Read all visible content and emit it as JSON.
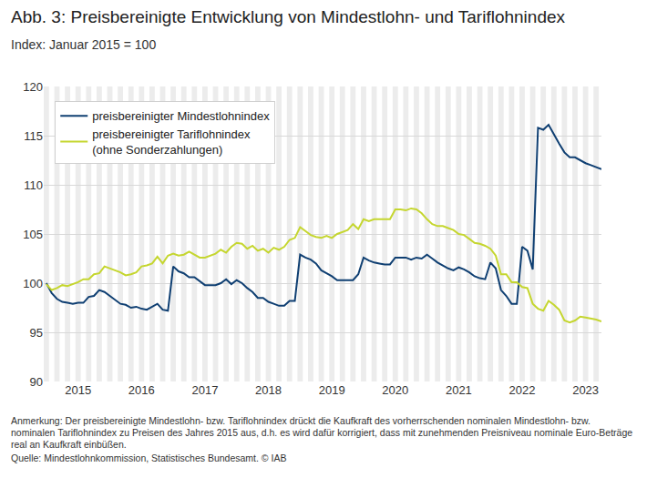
{
  "chart_data": {
    "type": "line",
    "title": "Abb. 3: Preisbereinigte Entwicklung von Mindestlohn- und Tariflohnindex",
    "subtitle": "Index: Januar 2015 = 100",
    "note": "Anmerkung: Der preisbereinigte Mindestlohn- bzw. Tariflohnindex drückt die Kaufkraft des vorherrschenden nominalen Mindestlohn- bzw. nominalen Tariflohnindex zu Preisen des Jahres 2015 aus, d.h. es wird dafür korrigiert, dass mit zunehmenden Preisniveau nominale Euro-Beträge real an Kaufkraft einbüßen.",
    "source": "Quelle: Mindestlohnkommission, Statistisches Bundesamt. © IAB",
    "categories": [
      null,
      null,
      null,
      null,
      null,
      null,
      "2015",
      null,
      null,
      null,
      null,
      null,
      null,
      null,
      null,
      null,
      null,
      null,
      "2016",
      null,
      null,
      null,
      null,
      null,
      null,
      null,
      null,
      null,
      null,
      null,
      "2017",
      null,
      null,
      null,
      null,
      null,
      null,
      null,
      null,
      null,
      null,
      null,
      "2018",
      null,
      null,
      null,
      null,
      null,
      null,
      null,
      null,
      null,
      null,
      null,
      "2019",
      null,
      null,
      null,
      null,
      null,
      null,
      null,
      null,
      null,
      null,
      null,
      "2020",
      null,
      null,
      null,
      null,
      null,
      null,
      null,
      null,
      null,
      null,
      null,
      "2021",
      null,
      null,
      null,
      null,
      null,
      null,
      null,
      null,
      null,
      null,
      null,
      "2022",
      null,
      null,
      null,
      null,
      null,
      null,
      null,
      null,
      null,
      null,
      null,
      "2023",
      null,
      null,
      null
    ],
    "series": [
      {
        "name": "preisbereinigter Mindestlohnindex",
        "color": "#0f3f72",
        "values": [
          100.0,
          99.0,
          98.4,
          98.1,
          98.0,
          97.9,
          98.0,
          98.0,
          98.6,
          98.7,
          99.3,
          99.1,
          98.7,
          98.3,
          97.9,
          97.8,
          97.5,
          97.6,
          97.4,
          97.3,
          97.6,
          97.9,
          97.3,
          97.2,
          101.7,
          101.2,
          101.0,
          100.6,
          100.6,
          100.2,
          99.8,
          99.8,
          99.8,
          100.0,
          100.4,
          99.9,
          100.3,
          100.0,
          99.5,
          99.1,
          98.5,
          98.5,
          98.1,
          97.9,
          97.7,
          97.7,
          98.2,
          98.2,
          102.9,
          102.6,
          102.4,
          102.0,
          101.3,
          101.0,
          100.7,
          100.3,
          100.3,
          100.3,
          100.3,
          100.9,
          102.6,
          102.3,
          102.1,
          102.0,
          101.9,
          101.9,
          102.6,
          102.6,
          102.6,
          102.4,
          102.6,
          102.5,
          102.9,
          102.5,
          102.1,
          101.8,
          101.5,
          101.3,
          101.6,
          101.4,
          101.1,
          100.7,
          100.5,
          100.4,
          102.1,
          101.5,
          99.3,
          98.7,
          97.9,
          97.9,
          103.7,
          103.3,
          101.4,
          115.8,
          115.6,
          116.1,
          115.1,
          114.2,
          113.3,
          112.8,
          112.8,
          112.5,
          112.2,
          112.0,
          111.8,
          111.6
        ]
      },
      {
        "name": "preisbereinigter Tariflohnindex (ohne Sonderzahlungen)",
        "color": "#c5d62f",
        "values": [
          99.9,
          99.3,
          99.5,
          99.8,
          99.7,
          99.9,
          100.1,
          100.4,
          100.4,
          100.9,
          101.0,
          101.7,
          101.5,
          101.3,
          101.1,
          100.8,
          100.9,
          101.1,
          101.7,
          101.8,
          102.0,
          102.7,
          102.0,
          102.8,
          103.0,
          102.8,
          102.9,
          103.2,
          102.9,
          102.6,
          102.6,
          102.8,
          103.0,
          103.4,
          103.1,
          103.7,
          104.1,
          104.0,
          103.5,
          103.8,
          103.3,
          103.5,
          103.1,
          103.6,
          103.4,
          103.7,
          104.4,
          104.6,
          105.7,
          105.3,
          104.9,
          104.7,
          104.6,
          104.8,
          104.6,
          105.0,
          105.2,
          105.4,
          106.0,
          105.5,
          106.5,
          106.3,
          106.5,
          106.5,
          106.5,
          106.5,
          107.5,
          107.5,
          107.4,
          107.6,
          107.5,
          107.1,
          106.5,
          106.0,
          105.8,
          105.8,
          105.6,
          105.4,
          105.0,
          104.9,
          104.5,
          104.1,
          104.0,
          103.8,
          103.5,
          102.8,
          100.9,
          100.9,
          100.1,
          100.1,
          99.6,
          99.5,
          97.9,
          97.4,
          97.2,
          98.2,
          97.8,
          97.3,
          96.2,
          96.0,
          96.2,
          96.6,
          96.5,
          96.4,
          96.3,
          96.1
        ]
      }
    ],
    "ylim": [
      90,
      120
    ],
    "yticks": [
      90,
      95,
      100,
      105,
      110,
      115,
      120
    ],
    "grid": true,
    "legend": "upper left"
  }
}
